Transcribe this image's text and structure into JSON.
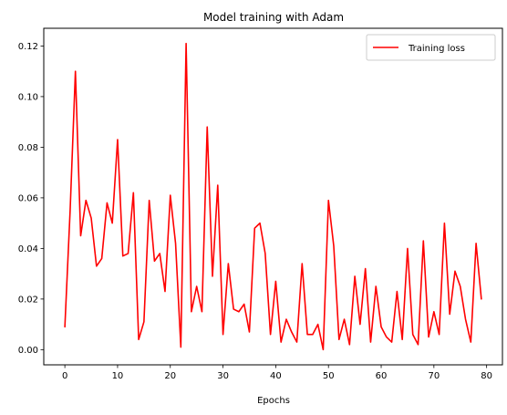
{
  "chart_data": {
    "type": "line",
    "title": "Model training with Adam",
    "xlabel": "Epochs",
    "ylabel": "",
    "xlim": [
      -4,
      83
    ],
    "ylim": [
      -0.006,
      0.127
    ],
    "xticks": [
      0,
      10,
      20,
      30,
      40,
      50,
      60,
      70,
      80
    ],
    "yticks": [
      0.0,
      0.02,
      0.04,
      0.06,
      0.08,
      0.1,
      0.12
    ],
    "ytick_format": 2,
    "grid": false,
    "legend_position": "top-right",
    "series": [
      {
        "name": "Training loss",
        "color": "#ff0000",
        "x": [
          0,
          1,
          2,
          3,
          4,
          5,
          6,
          7,
          8,
          9,
          10,
          11,
          12,
          13,
          14,
          15,
          16,
          17,
          18,
          19,
          20,
          21,
          22,
          23,
          24,
          25,
          26,
          27,
          28,
          29,
          30,
          31,
          32,
          33,
          34,
          35,
          36,
          37,
          38,
          39,
          40,
          41,
          42,
          43,
          44,
          45,
          46,
          47,
          48,
          49,
          50,
          51,
          52,
          53,
          54,
          55,
          56,
          57,
          58,
          59,
          60,
          61,
          62,
          63,
          64,
          65,
          66,
          67,
          68,
          69,
          70,
          71,
          72,
          73,
          74,
          75,
          76,
          77,
          78,
          79
        ],
        "values": [
          0.009,
          0.055,
          0.11,
          0.045,
          0.059,
          0.052,
          0.033,
          0.036,
          0.058,
          0.05,
          0.083,
          0.037,
          0.038,
          0.062,
          0.004,
          0.011,
          0.059,
          0.035,
          0.038,
          0.023,
          0.061,
          0.042,
          0.001,
          0.121,
          0.015,
          0.025,
          0.015,
          0.088,
          0.029,
          0.065,
          0.006,
          0.034,
          0.016,
          0.015,
          0.018,
          0.007,
          0.048,
          0.05,
          0.038,
          0.006,
          0.027,
          0.003,
          0.012,
          0.007,
          0.003,
          0.034,
          0.006,
          0.006,
          0.01,
          0.0,
          0.059,
          0.041,
          0.004,
          0.012,
          0.002,
          0.029,
          0.01,
          0.032,
          0.003,
          0.025,
          0.009,
          0.005,
          0.003,
          0.023,
          0.004,
          0.04,
          0.006,
          0.002,
          0.043,
          0.005,
          0.015,
          0.006,
          0.05,
          0.014,
          0.031,
          0.025,
          0.012,
          0.003,
          0.042,
          0.02
        ]
      }
    ]
  }
}
